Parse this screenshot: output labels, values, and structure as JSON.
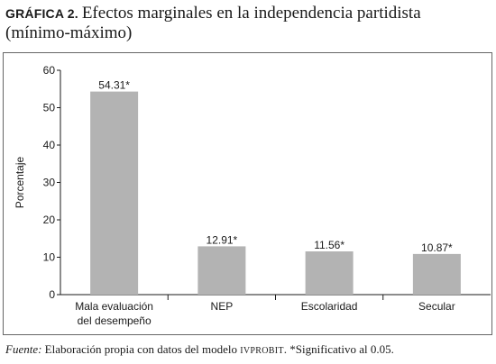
{
  "figure": {
    "tag": "GRÁFICA 2.",
    "title_line1": "Efectos marginales en la independencia partidista",
    "title_line2": "(mínimo-máximo)"
  },
  "chart_data": {
    "type": "bar",
    "categories": [
      "Mala evaluación|del desempeño",
      "NEP",
      "Escolaridad",
      "Secular"
    ],
    "values": [
      54.31,
      12.91,
      11.56,
      10.87
    ],
    "data_labels": [
      "54.31*",
      "12.91*",
      "11.56*",
      "10.87*"
    ],
    "ylabel": "Porcentaje",
    "ylim": [
      0,
      60
    ],
    "yticks": [
      "0",
      "10",
      "20",
      "30",
      "40",
      "50",
      "60"
    ],
    "bar_color": "#b3b3b3",
    "grid": false
  },
  "source": {
    "label": "Fuente:",
    "text_before": " Elaboración propia con datos del modelo ",
    "model": "IVPROBIT",
    "text_after": ". *Significativo al 0.05."
  }
}
